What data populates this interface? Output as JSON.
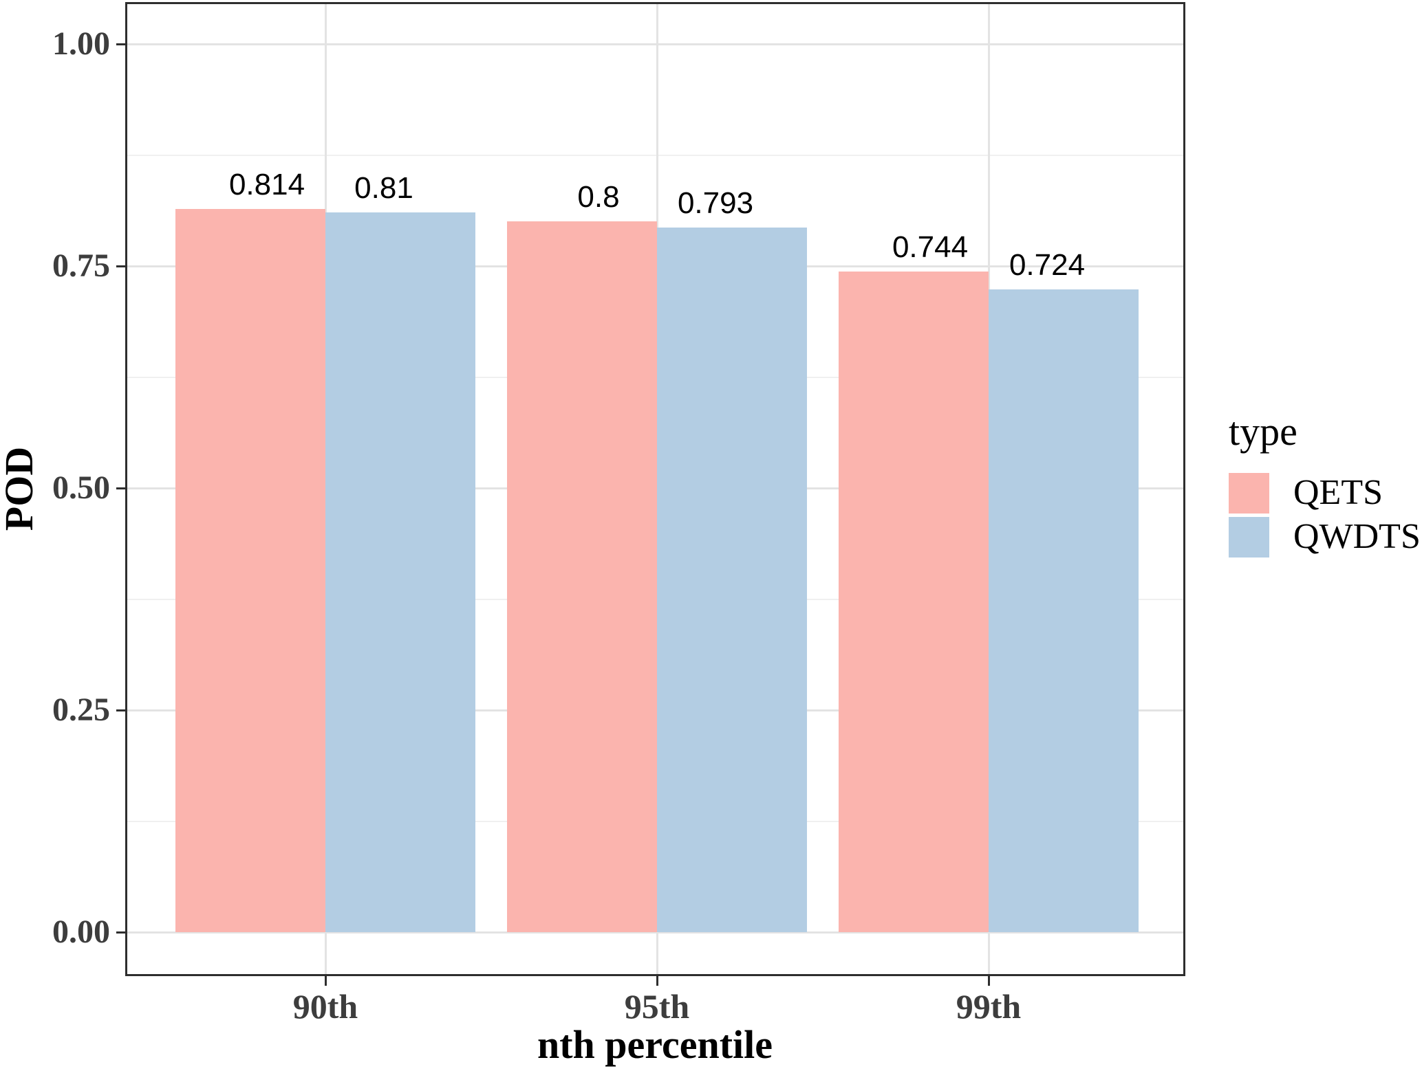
{
  "chart_data": {
    "type": "bar",
    "title": "",
    "xlabel": "nth percentile",
    "ylabel": "POD",
    "categories": [
      "90th",
      "95th",
      "99th"
    ],
    "series": [
      {
        "name": "QETS",
        "color": "#FBB4AE",
        "values": [
          0.814,
          0.8,
          0.744
        ],
        "value_labels": [
          "0.814",
          "0.8",
          "0.744"
        ]
      },
      {
        "name": "QWDTS",
        "color": "#B3CDE3",
        "values": [
          0.81,
          0.793,
          0.724
        ],
        "value_labels": [
          "0.81",
          "0.793",
          "0.724"
        ]
      }
    ],
    "ylim": [
      0,
      1.0
    ],
    "yticks": [
      {
        "value": 0.0,
        "label": "0.00"
      },
      {
        "value": 0.25,
        "label": "0.25"
      },
      {
        "value": 0.5,
        "label": "0.50"
      },
      {
        "value": 0.75,
        "label": "0.75"
      },
      {
        "value": 1.0,
        "label": "1.00"
      }
    ],
    "y_minor_breaks": [
      0.125,
      0.375,
      0.625,
      0.875
    ],
    "grid": "major-and-minor, vertical major at category centers",
    "legend": {
      "title": "type",
      "position": "right",
      "entries": [
        "QETS",
        "QWDTS"
      ]
    },
    "bar_labels_shown": true
  },
  "colors": {
    "panel_border": "#2e2e2e",
    "grid_major": "#e3e3e3",
    "grid_minor": "#f0f0f0",
    "tick_label": "#3d3d3d",
    "axis_title": "#000000",
    "background": "#ffffff",
    "qets_fill": "#FBB4AE",
    "qwdts_fill": "#B3CDE3"
  }
}
